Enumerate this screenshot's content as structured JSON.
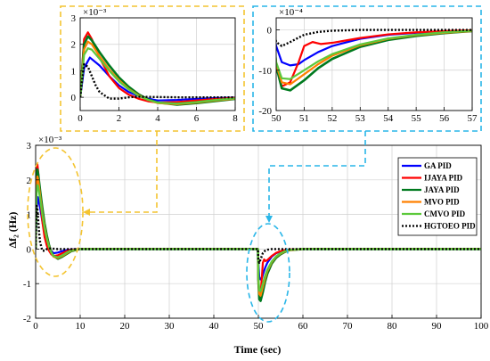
{
  "chart_data": [
    {
      "id": "main",
      "type": "line",
      "xlabel": "Time (sec)",
      "ylabel": "Δf₂ (Hz)",
      "xlim": [
        0,
        100
      ],
      "ylim": [
        -2,
        3
      ],
      "xticks": [
        0,
        10,
        20,
        30,
        40,
        50,
        60,
        70,
        80,
        90,
        100
      ],
      "yticks": [
        -2,
        -1,
        0,
        1,
        2,
        3
      ],
      "ymultiplier": "×10⁻³",
      "grid": true,
      "legend": "right",
      "series": [
        {
          "name": "GA PID",
          "color": "#0000ff",
          "dash": "",
          "width": 2.2,
          "x": [
            0,
            0.2,
            0.5,
            1,
            1.5,
            2,
            2.5,
            3,
            3.5,
            4,
            5,
            6,
            7,
            8,
            10,
            15,
            20,
            30,
            40,
            49.9,
            50,
            50.2,
            50.5,
            50.8,
            51,
            51.5,
            52,
            53,
            54,
            55,
            56,
            57,
            60,
            70,
            80,
            90,
            100
          ],
          "y": [
            0,
            1.1,
            1.5,
            1.2,
            0.8,
            0.45,
            0.2,
            0.05,
            -0.05,
            -0.12,
            -0.1,
            -0.06,
            -0.03,
            -0.01,
            0,
            0,
            0,
            0,
            0,
            0,
            -0.4,
            -0.8,
            -0.88,
            -0.85,
            -0.75,
            -0.55,
            -0.4,
            -0.22,
            -0.12,
            -0.07,
            -0.04,
            -0.02,
            0,
            0,
            0,
            0,
            0
          ]
        },
        {
          "name": "IJAYA PID",
          "color": "#ff0000",
          "dash": "",
          "width": 2.2,
          "x": [
            0,
            0.2,
            0.4,
            0.6,
            1,
            1.5,
            2,
            2.5,
            3,
            3.5,
            4,
            5,
            6,
            7,
            8,
            10,
            15,
            20,
            30,
            40,
            49.9,
            50,
            50.2,
            50.5,
            50.8,
            51,
            51.3,
            51.6,
            52,
            53,
            54,
            55,
            56,
            57,
            60,
            70,
            80,
            90,
            100
          ],
          "y": [
            0,
            2.2,
            2.45,
            2.2,
            1.5,
            0.8,
            0.35,
            0.1,
            -0.05,
            -0.15,
            -0.2,
            -0.18,
            -0.12,
            -0.06,
            -0.02,
            0,
            0,
            0,
            0,
            0,
            0,
            -0.9,
            -1.4,
            -1.3,
            -0.8,
            -0.4,
            -0.3,
            -0.35,
            -0.32,
            -0.2,
            -0.11,
            -0.06,
            -0.03,
            -0.01,
            0,
            0,
            0,
            0,
            0
          ]
        },
        {
          "name": "JAYA PID",
          "color": "#007a1f",
          "dash": "",
          "width": 2.6,
          "x": [
            0,
            0.2,
            0.4,
            0.6,
            1,
            1.5,
            2,
            2.5,
            3,
            3.5,
            4,
            5,
            6,
            7,
            8,
            10,
            15,
            20,
            30,
            40,
            49.9,
            50,
            50.2,
            50.5,
            51,
            51.5,
            52,
            53,
            54,
            55,
            56,
            57,
            60,
            70,
            80,
            90,
            100
          ],
          "y": [
            0,
            2.0,
            2.3,
            2.15,
            1.7,
            1.2,
            0.75,
            0.4,
            0.12,
            -0.08,
            -0.2,
            -0.28,
            -0.22,
            -0.14,
            -0.06,
            0,
            0,
            0,
            0,
            0,
            0,
            -0.9,
            -1.45,
            -1.5,
            -1.25,
            -0.95,
            -0.72,
            -0.42,
            -0.25,
            -0.15,
            -0.08,
            -0.03,
            0,
            0,
            0,
            0,
            0
          ]
        },
        {
          "name": "MVO PID",
          "color": "#ff8000",
          "dash": "",
          "width": 2.2,
          "x": [
            0,
            0.2,
            0.4,
            0.6,
            1,
            1.5,
            2,
            2.5,
            3,
            3.5,
            4,
            5,
            6,
            7,
            8,
            10,
            15,
            20,
            30,
            40,
            49.9,
            50,
            50.2,
            50.5,
            51,
            51.5,
            52,
            53,
            54,
            55,
            56,
            57,
            60,
            70,
            80,
            90,
            100
          ],
          "y": [
            0,
            1.8,
            2.1,
            2.0,
            1.55,
            1.05,
            0.65,
            0.32,
            0.08,
            -0.1,
            -0.22,
            -0.26,
            -0.2,
            -0.12,
            -0.05,
            0,
            0,
            0,
            0,
            0,
            0,
            -0.85,
            -1.3,
            -1.35,
            -1.1,
            -0.85,
            -0.64,
            -0.38,
            -0.22,
            -0.13,
            -0.07,
            -0.03,
            0,
            0,
            0,
            0,
            0
          ]
        },
        {
          "name": "CMVO PID",
          "color": "#5cc93b",
          "dash": "",
          "width": 2.2,
          "x": [
            0,
            0.2,
            0.4,
            0.6,
            1,
            1.5,
            2,
            2.5,
            3,
            3.5,
            4,
            5,
            6,
            7,
            8,
            10,
            15,
            20,
            30,
            40,
            49.9,
            50,
            50.2,
            50.5,
            51,
            51.5,
            52,
            53,
            54,
            55,
            56,
            57,
            60,
            70,
            80,
            90,
            100
          ],
          "y": [
            0,
            1.6,
            1.85,
            1.8,
            1.45,
            1.0,
            0.6,
            0.3,
            0.06,
            -0.1,
            -0.2,
            -0.24,
            -0.18,
            -0.1,
            -0.04,
            0,
            0,
            0,
            0,
            0,
            0,
            -0.8,
            -1.2,
            -1.22,
            -1.0,
            -0.78,
            -0.6,
            -0.36,
            -0.21,
            -0.12,
            -0.06,
            -0.02,
            0,
            0,
            0,
            0,
            0
          ]
        },
        {
          "name": "HGTOEO PID",
          "color": "#000000",
          "dash": "2,2",
          "width": 2.4,
          "x": [
            0,
            0.2,
            0.4,
            0.6,
            0.8,
            1,
            1.5,
            2,
            2.5,
            3,
            4,
            5,
            6,
            8,
            10,
            20,
            30,
            40,
            49.9,
            50,
            50.2,
            50.5,
            51,
            51.5,
            52,
            53,
            54,
            55,
            56,
            57,
            60,
            70,
            80,
            90,
            100
          ],
          "y": [
            0,
            1.25,
            1.15,
            0.8,
            0.45,
            0.2,
            -0.05,
            -0.05,
            0,
            0.02,
            0.01,
            0,
            0,
            0,
            0,
            0,
            0,
            0,
            0,
            -0.3,
            -0.4,
            -0.3,
            -0.12,
            -0.05,
            -0.02,
            0,
            0,
            0,
            0,
            0,
            0,
            0,
            0,
            0,
            0
          ]
        }
      ]
    },
    {
      "id": "inset_left",
      "type": "line",
      "xlim": [
        0,
        8
      ],
      "ylim": [
        -0.5,
        3
      ],
      "xticks": [
        0,
        2,
        4,
        6,
        8
      ],
      "yticks": [
        0,
        1,
        2,
        3
      ],
      "ymultiplier": "×10⁻³",
      "grid": true,
      "series_ref": "main"
    },
    {
      "id": "inset_right",
      "type": "line",
      "xlim": [
        50,
        57
      ],
      "ylim": [
        -20,
        3
      ],
      "xticks": [
        50,
        51,
        52,
        53,
        54,
        55,
        56,
        57
      ],
      "yticks": [
        -20,
        -10,
        0
      ],
      "ymultiplier": "×10⁻⁴",
      "yscale_factor": 10,
      "grid": true,
      "series_ref": "main"
    }
  ],
  "colors": {
    "inset_left_frame": "#f4c430",
    "inset_right_frame": "#29b6e8"
  }
}
